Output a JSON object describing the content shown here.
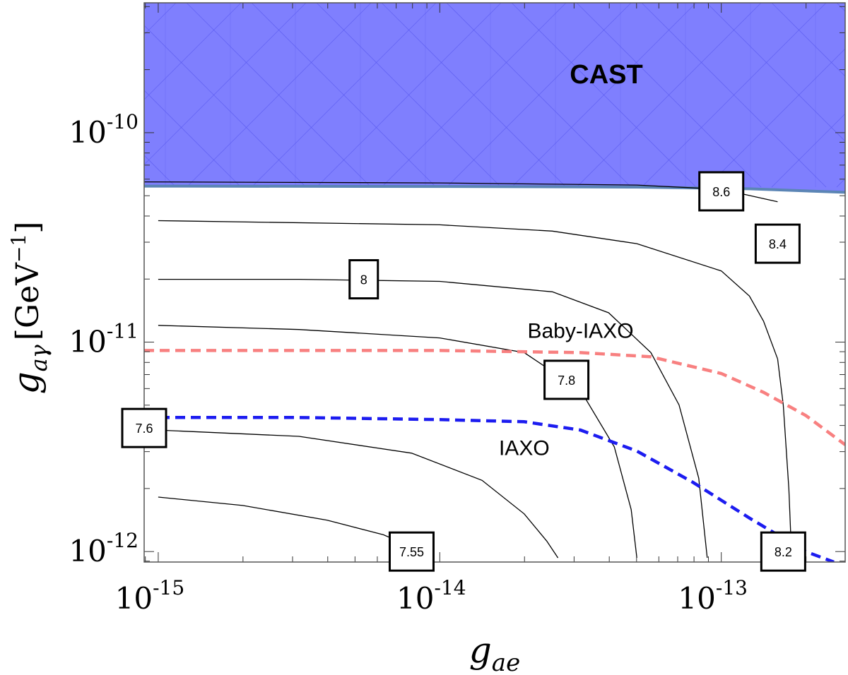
{
  "chart_data": {
    "type": "line",
    "xscale": "log",
    "yscale": "log",
    "xlim_exp": [
      -15.05,
      -12.56
    ],
    "ylim_exp": [
      -12.05,
      -9.38
    ],
    "x_ticks": [
      {
        "exp": -15,
        "label_base": "10",
        "label_exp": "-15"
      },
      {
        "exp": -14,
        "label_base": "10",
        "label_exp": "-14"
      },
      {
        "exp": -13,
        "label_base": "10",
        "label_exp": "-13"
      }
    ],
    "y_ticks": [
      {
        "exp": -12,
        "label_base": "10",
        "label_exp": "-12"
      },
      {
        "exp": -11,
        "label_base": "10",
        "label_exp": "-11"
      },
      {
        "exp": -10,
        "label_base": "10",
        "label_exp": "-10"
      }
    ],
    "xlabel": {
      "main": "g",
      "sub": "ae"
    },
    "ylabel": {
      "main": "g",
      "sub": "aγ",
      "unit": "[GeV",
      "unit_exp": "−1",
      "unit_close": "]"
    },
    "cast_region": {
      "label": "CAST",
      "color": "#7f7ffe",
      "edge_color": "#5b85b5",
      "boundary_x_exp": [
        -15.05,
        -14.0,
        -13.3,
        -12.9,
        -12.56
      ],
      "boundary_y_exp": [
        -10.255,
        -10.257,
        -10.26,
        -10.268,
        -10.285
      ]
    },
    "series": [
      {
        "name": "Baby-IAXO",
        "color": "#f88080",
        "dash": true,
        "x_exp": [
          -15.05,
          -14.5,
          -14.0,
          -13.5,
          -13.25,
          -13.0,
          -12.85,
          -12.7,
          -12.56
        ],
        "y_exp": [
          -11.04,
          -11.04,
          -11.04,
          -11.05,
          -11.07,
          -11.15,
          -11.24,
          -11.35,
          -11.49
        ]
      },
      {
        "name": "IAXO",
        "color": "#1c1cf0",
        "dash": true,
        "x_exp": [
          -15.05,
          -14.5,
          -14.0,
          -13.7,
          -13.5,
          -13.3,
          -13.1,
          -12.9,
          -12.7,
          -12.6
        ],
        "y_exp": [
          -11.36,
          -11.36,
          -11.37,
          -11.38,
          -11.42,
          -11.52,
          -11.67,
          -11.84,
          -12.0,
          -12.05
        ]
      }
    ],
    "contours": [
      {
        "level": "8.6",
        "x_exp": [
          -15.05,
          -14.0,
          -13.3,
          -13.0,
          -12.8
        ],
        "y_exp": [
          -10.235,
          -10.24,
          -10.25,
          -10.27,
          -10.33
        ]
      },
      {
        "level": "8.4",
        "x_exp": [
          -15.0,
          -14.0,
          -13.6,
          -13.3,
          -13.0,
          -12.9,
          -12.85,
          -12.8
        ],
        "y_exp": [
          -10.42,
          -10.44,
          -10.47,
          -10.53,
          -10.66,
          -10.78,
          -10.9,
          -11.08
        ]
      },
      {
        "level": "8.2",
        "x_exp": [
          -12.8,
          -12.78,
          -12.76,
          -12.75
        ],
        "y_exp": [
          -11.08,
          -11.3,
          -11.7,
          -12.03
        ]
      },
      {
        "level": "8",
        "x_exp": [
          -15.0,
          -14.5,
          -14.0,
          -13.6,
          -13.4,
          -13.25,
          -13.15,
          -13.08,
          -13.05
        ],
        "y_exp": [
          -10.7,
          -10.7,
          -10.71,
          -10.76,
          -10.86,
          -11.05,
          -11.3,
          -11.65,
          -12.03
        ]
      },
      {
        "level": "7.8",
        "x_exp": [
          -15.0,
          -14.5,
          -14.0,
          -13.7,
          -13.5,
          -13.38,
          -13.32,
          -13.3
        ],
        "y_exp": [
          -10.92,
          -10.94,
          -10.98,
          -11.05,
          -11.23,
          -11.5,
          -11.8,
          -12.03
        ]
      },
      {
        "level": "7.6",
        "x_exp": [
          -15.0,
          -14.5,
          -14.1,
          -13.85,
          -13.7,
          -13.62,
          -13.58
        ],
        "y_exp": [
          -11.42,
          -11.45,
          -11.53,
          -11.66,
          -11.82,
          -11.95,
          -12.03
        ]
      },
      {
        "level": "7.55",
        "x_exp": [
          -15.0,
          -14.7,
          -14.4,
          -14.2,
          -14.08,
          -14.02
        ],
        "y_exp": [
          -11.74,
          -11.78,
          -11.85,
          -11.92,
          -11.99,
          -12.03
        ]
      }
    ],
    "contour_labels": [
      {
        "text": "8.6",
        "x_exp": -13.0,
        "y_exp": -10.28
      },
      {
        "text": "8.4",
        "x_exp": -12.8,
        "y_exp": -10.53
      },
      {
        "text": "8",
        "x_exp": -14.27,
        "y_exp": -10.7
      },
      {
        "text": "7.8",
        "x_exp": -13.55,
        "y_exp": -11.18
      },
      {
        "text": "7.6",
        "x_exp": -15.05,
        "y_exp": -11.41
      },
      {
        "text": "7.55",
        "x_exp": -14.1,
        "y_exp": -12.0
      },
      {
        "text": "8.2",
        "x_exp": -12.78,
        "y_exp": -12.0
      }
    ],
    "annotations": [
      {
        "text": "Baby-IAXO",
        "x_exp": -13.5,
        "y_exp": -10.98
      },
      {
        "text": "IAXO",
        "x_exp": -13.7,
        "y_exp": -11.54
      }
    ]
  }
}
